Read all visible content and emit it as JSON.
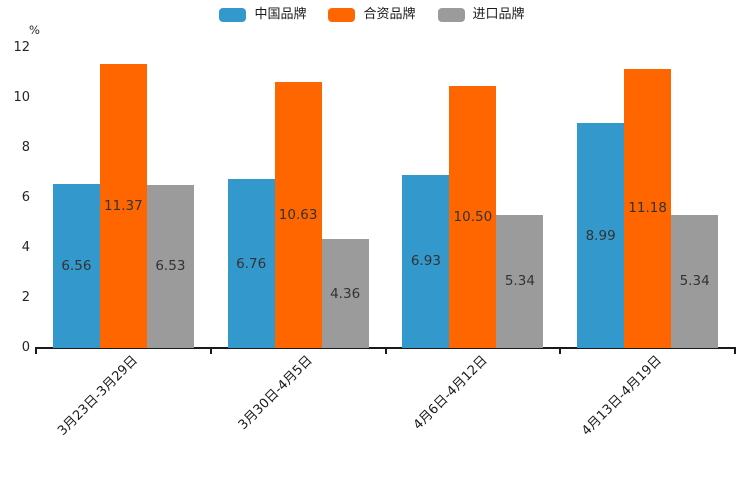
{
  "chart_data": {
    "type": "bar",
    "title": "",
    "ylabel": "%",
    "xlabel": "",
    "categories": [
      "3月23日-3月29日",
      "3月30日-4月5日",
      "4月6日-4月12日",
      "4月13日-4月19日"
    ],
    "series": [
      {
        "name": "中国品牌",
        "color": "#3398CB",
        "values": [
          6.56,
          6.76,
          6.93,
          8.99
        ]
      },
      {
        "name": "合资品牌",
        "color": "#FF6600",
        "values": [
          11.37,
          10.63,
          10.5,
          11.18
        ]
      },
      {
        "name": "进口品牌",
        "color": "#9B9B9B",
        "values": [
          6.53,
          4.36,
          5.34,
          5.34
        ]
      }
    ],
    "y_ticks": [
      0,
      2,
      4,
      6,
      8,
      10,
      12
    ],
    "ylim": [
      0,
      12
    ],
    "grid": false,
    "legend_position": "top-center",
    "value_labels": "inside-center",
    "value_label_decimals": 2,
    "axis_color": "#1a1a1a",
    "value_label_color": "#333333"
  }
}
